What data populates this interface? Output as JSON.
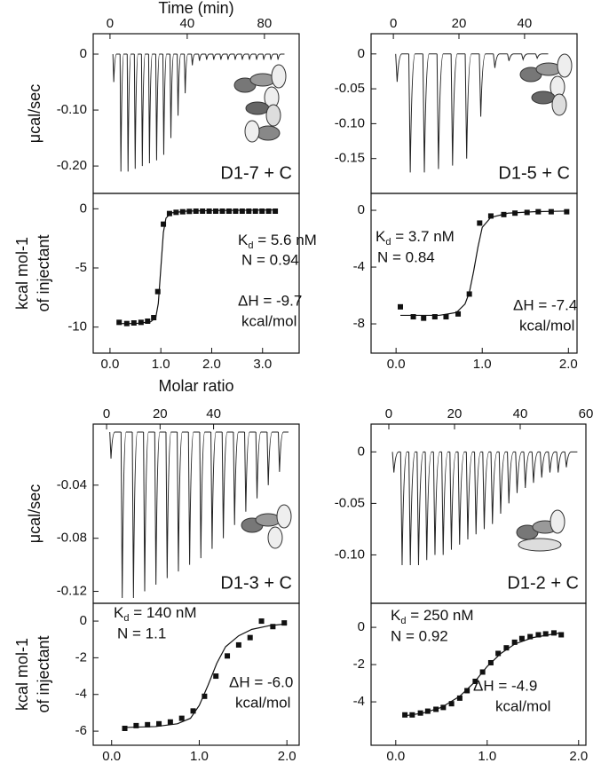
{
  "chart_data": [
    {
      "type": "thermogram",
      "title": "D1-7 + C",
      "xlabel": "Time (min)",
      "ylabel": "μcal/sec",
      "xlim": [
        -8.7,
        98
      ],
      "ylim": [
        -0.249,
        0.0365
      ],
      "xticks": [
        0,
        40,
        80
      ],
      "yticks": [
        0,
        {
          "value": -0.1,
          "label": "-0.10"
        },
        {
          "value": -0.2,
          "label": "-0.20"
        }
      ],
      "x": [
        1.8,
        5.5,
        9.2,
        12.9,
        16.6,
        20.3,
        24,
        27.7,
        31.4,
        35.1,
        38.8,
        42.5,
        46.2,
        49.9,
        53.6,
        57.3,
        61,
        64.7,
        68.4,
        72.1,
        75.8,
        79.5,
        83.2,
        86.9
      ],
      "values": [
        -0.05,
        -0.21,
        -0.21,
        -0.205,
        -0.2,
        -0.195,
        -0.19,
        -0.18,
        -0.15,
        -0.11,
        -0.07,
        -0.02,
        -0.012,
        -0.01,
        -0.01,
        -0.01,
        -0.01,
        -0.01,
        -0.01,
        -0.01,
        -0.01,
        -0.01,
        -0.01,
        -0.01
      ]
    },
    {
      "type": "isotherm",
      "xlabel": "Molar ratio",
      "ylabel": [
        "kcal mol-1",
        "of injectant"
      ],
      "xlim": [
        -0.33,
        3.72
      ],
      "ylim": [
        -12.2,
        1.3
      ],
      "xticks": [
        {
          "value": 0,
          "label": "0.0"
        },
        {
          "value": 1,
          "label": "1.0"
        },
        {
          "value": 2,
          "label": "2.0"
        },
        {
          "value": 3,
          "label": "3.0"
        }
      ],
      "yticks": [
        0,
        -5,
        -10
      ],
      "x": [
        0.18,
        0.33,
        0.47,
        0.61,
        0.74,
        0.86,
        0.94,
        1.05,
        1.17,
        1.3,
        1.43,
        1.56,
        1.69,
        1.82,
        1.95,
        2.08,
        2.21,
        2.34,
        2.47,
        2.6,
        2.73,
        2.86,
        2.99,
        3.12,
        3.25
      ],
      "values": [
        -9.6,
        -9.7,
        -9.65,
        -9.6,
        -9.5,
        -9.2,
        -7.0,
        -1.3,
        -0.4,
        -0.3,
        -0.25,
        -0.22,
        -0.2,
        -0.2,
        -0.2,
        -0.2,
        -0.2,
        -0.2,
        -0.2,
        -0.2,
        -0.2,
        -0.2,
        -0.2,
        -0.2,
        -0.2
      ],
      "fit_x": [
        0.15,
        0.5,
        0.8,
        0.9,
        0.95,
        1.0,
        1.05,
        1.1,
        1.2,
        1.5,
        2.0,
        3.3
      ],
      "fit_values": [
        -9.7,
        -9.7,
        -9.55,
        -9.2,
        -8.0,
        -5.0,
        -2.0,
        -0.8,
        -0.35,
        -0.2,
        -0.15,
        -0.1
      ],
      "annotations": {
        "kd": {
          "symbol": "K",
          "subscript": "d",
          "text": " = 5.6 nM"
        },
        "n": "N = 0.94",
        "dh": "ΔH = -9.7",
        "unit": "kcal/mol"
      }
    },
    {
      "type": "thermogram",
      "title": "D1-5 + C",
      "xlim": [
        -6.8,
        56
      ],
      "ylim": [
        -0.2,
        0.029
      ],
      "xticks": [
        0,
        20,
        40
      ],
      "yticks": [
        0,
        -0.05,
        {
          "value": -0.1,
          "label": "-0.10"
        },
        -0.15
      ],
      "x": [
        1,
        5,
        9.3,
        13.6,
        17.9,
        22.2,
        26.5,
        30.8,
        35.1,
        39.4,
        43.7
      ],
      "values": [
        -0.04,
        -0.17,
        -0.17,
        -0.165,
        -0.16,
        -0.15,
        -0.09,
        -0.02,
        -0.01,
        -0.008,
        -0.006
      ]
    },
    {
      "type": "isotherm",
      "xlim": [
        -0.29,
        2.1
      ],
      "ylim": [
        -10.06,
        1.19
      ],
      "xticks": [
        {
          "value": 0,
          "label": "0.0"
        },
        {
          "value": 1,
          "label": "1.0"
        },
        {
          "value": 2,
          "label": "2.0"
        }
      ],
      "yticks": [
        0,
        -4,
        -8
      ],
      "x": [
        0.05,
        0.2,
        0.32,
        0.45,
        0.58,
        0.72,
        0.85,
        0.97,
        1.1,
        1.25,
        1.38,
        1.52,
        1.65,
        1.8,
        1.98
      ],
      "values": [
        -6.8,
        -7.5,
        -7.6,
        -7.5,
        -7.5,
        -7.3,
        -5.9,
        -0.9,
        -0.4,
        -0.3,
        -0.2,
        -0.15,
        -0.1,
        -0.1,
        -0.1
      ],
      "fit_x": [
        0.05,
        0.5,
        0.7,
        0.8,
        0.85,
        0.9,
        0.95,
        1.0,
        1.1,
        1.3,
        1.6,
        2.0
      ],
      "fit_values": [
        -7.4,
        -7.4,
        -7.2,
        -6.6,
        -5.8,
        -4.3,
        -2.6,
        -1.2,
        -0.5,
        -0.2,
        -0.1,
        -0.05
      ],
      "annotations": {
        "kd": {
          "symbol": "K",
          "subscript": "d",
          "text": " = 3.7 nM"
        },
        "n": "N = 0.84",
        "dh": "ΔH = -7.4",
        "unit": "kcal/mol"
      }
    },
    {
      "type": "thermogram",
      "title": "D1-3 + C",
      "ylabel": "μcal/sec",
      "xlim": [
        -5,
        72
      ],
      "ylim": [
        -0.129,
        0.006
      ],
      "xticks": [
        0,
        20,
        40
      ],
      "yticks": [
        -0.04,
        -0.08,
        -0.12
      ],
      "x": [
        1.5,
        5.7,
        9.9,
        14.1,
        18.3,
        22.5,
        26.7,
        30.9,
        35.1,
        39.3,
        43.5,
        47.7,
        51.9,
        56.1,
        60.3,
        64.5
      ],
      "values": [
        -0.02,
        -0.125,
        -0.125,
        -0.12,
        -0.115,
        -0.11,
        -0.105,
        -0.1,
        -0.095,
        -0.088,
        -0.08,
        -0.07,
        -0.06,
        -0.05,
        -0.04,
        -0.03
      ]
    },
    {
      "type": "isotherm",
      "ylabel": [
        "kcal mol-1",
        "of injectant"
      ],
      "xlim": [
        -0.21,
        2.14
      ],
      "ylim": [
        -6.77,
        0.97
      ],
      "xticks": [
        {
          "value": 0,
          "label": "0.0"
        },
        {
          "value": 1,
          "label": "1.0"
        },
        {
          "value": 2,
          "label": "2.0"
        }
      ],
      "yticks": [
        0,
        -2,
        -4,
        -6
      ],
      "x": [
        0.15,
        0.28,
        0.41,
        0.54,
        0.67,
        0.8,
        0.93,
        1.06,
        1.19,
        1.32,
        1.45,
        1.58,
        1.71,
        1.84,
        1.97
      ],
      "values": [
        -5.85,
        -5.7,
        -5.65,
        -5.6,
        -5.5,
        -5.3,
        -4.9,
        -4.1,
        -3.0,
        -1.9,
        -1.3,
        -0.9,
        0.0,
        -0.3,
        -0.1
      ],
      "fit_x": [
        0.15,
        0.5,
        0.75,
        0.9,
        1.0,
        1.1,
        1.2,
        1.3,
        1.45,
        1.6,
        1.8,
        2.0
      ],
      "fit_values": [
        -5.8,
        -5.75,
        -5.6,
        -5.3,
        -4.6,
        -3.5,
        -2.3,
        -1.4,
        -0.8,
        -0.45,
        -0.25,
        -0.15
      ],
      "annotations": {
        "kd": {
          "symbol": "K",
          "subscript": "d",
          "text": " = 140 nM"
        },
        "n": "N = 1.1",
        "dh": "ΔH = -6.0",
        "unit": "kcal/mol"
      }
    },
    {
      "type": "thermogram",
      "title": "D1-2 + C",
      "xlim": [
        -5.4,
        60
      ],
      "ylim": [
        -0.147,
        0.027
      ],
      "xticks": [
        0,
        20,
        40,
        60
      ],
      "yticks": [
        0,
        -0.05,
        {
          "value": -0.1,
          "label": "-0.10"
        }
      ],
      "x": [
        1.4,
        3.9,
        6.4,
        8.9,
        11.4,
        13.9,
        16.4,
        18.9,
        21.4,
        23.9,
        26.4,
        28.9,
        31.4,
        33.9,
        36.4,
        38.9,
        41.4,
        43.9,
        46.4,
        48.9,
        51.4,
        53.9
      ],
      "values": [
        -0.02,
        -0.11,
        -0.11,
        -0.11,
        -0.105,
        -0.1,
        -0.1,
        -0.095,
        -0.09,
        -0.085,
        -0.08,
        -0.075,
        -0.07,
        -0.06,
        -0.05,
        -0.04,
        -0.035,
        -0.03,
        -0.025,
        -0.02,
        -0.02,
        -0.015
      ]
    },
    {
      "type": "isotherm",
      "xlim": [
        -0.27,
        2.08
      ],
      "ylim": [
        -6.33,
        1.29
      ],
      "xticks": [
        {
          "value": 0,
          "label": "0.0"
        },
        {
          "value": 1,
          "label": "1.0"
        },
        {
          "value": 2,
          "label": "2.0"
        }
      ],
      "yticks": [
        0,
        -2,
        -4
      ],
      "x": [
        0.1,
        0.18,
        0.27,
        0.35,
        0.44,
        0.52,
        0.61,
        0.7,
        0.78,
        0.87,
        0.95,
        1.04,
        1.12,
        1.21,
        1.3,
        1.38,
        1.47,
        1.56,
        1.64,
        1.73,
        1.81
      ],
      "values": [
        -4.7,
        -4.7,
        -4.6,
        -4.5,
        -4.4,
        -4.3,
        -4.1,
        -3.8,
        -3.4,
        -2.9,
        -2.4,
        -1.9,
        -1.4,
        -1.1,
        -0.8,
        -0.6,
        -0.5,
        -0.4,
        -0.35,
        -0.3,
        -0.4
      ],
      "fit_x": [
        0.1,
        0.3,
        0.5,
        0.7,
        0.85,
        1.0,
        1.15,
        1.3,
        1.5,
        1.8
      ],
      "fit_values": [
        -4.75,
        -4.6,
        -4.3,
        -3.7,
        -3.0,
        -2.1,
        -1.4,
        -0.9,
        -0.55,
        -0.3
      ],
      "annotations": {
        "kd": {
          "symbol": "K",
          "subscript": "d",
          "text": " = 250 nM"
        },
        "n": "N = 0.92",
        "dh": "ΔH = -4.9",
        "unit": "kcal/mol"
      }
    }
  ]
}
